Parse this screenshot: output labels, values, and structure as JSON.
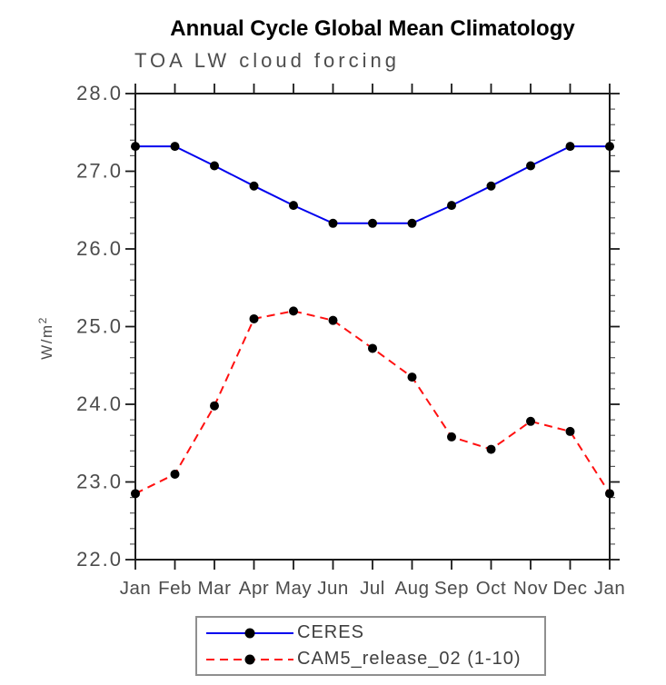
{
  "figure": {
    "title": "Annual Cycle Global Mean Climatology",
    "subtitle": "TOA LW cloud forcing"
  },
  "chart_data": {
    "type": "line",
    "title": "Annual Cycle Global Mean Climatology",
    "subtitle": "TOA LW cloud forcing",
    "xlabel": "",
    "ylabel": "W/m²",
    "ylabel_base": "W/m",
    "ylabel_exponent": "2",
    "categories": [
      "Jan",
      "Feb",
      "Mar",
      "Apr",
      "May",
      "Jun",
      "Jul",
      "Aug",
      "Sep",
      "Oct",
      "Nov",
      "Dec",
      "Jan"
    ],
    "ylim": [
      22.0,
      28.0
    ],
    "ytick_major_step": 1.0,
    "ytick_minor_step": 0.2,
    "ytick_labels": [
      "22.0",
      "23.0",
      "24.0",
      "25.0",
      "26.0",
      "27.0",
      "28.0"
    ],
    "grid": false,
    "legend_position": "bottom",
    "series": [
      {
        "name": "CERES",
        "line_color": "#0000ee",
        "line_style": "solid",
        "marker": "circle",
        "marker_color": "#000000",
        "values": [
          27.32,
          27.32,
          27.07,
          26.81,
          26.56,
          26.33,
          26.33,
          26.33,
          26.56,
          26.81,
          27.07,
          27.32,
          27.32
        ]
      },
      {
        "name": "CAM5_release_02 (1-10)",
        "line_color": "#ff1010",
        "line_style": "dashed",
        "marker": "circle",
        "marker_color": "#000000",
        "values": [
          22.85,
          23.1,
          23.98,
          25.1,
          25.2,
          25.08,
          24.72,
          24.35,
          23.58,
          23.42,
          23.78,
          23.65,
          22.85
        ]
      }
    ]
  },
  "style_colors": {
    "axis": "#1a1a1a",
    "minor_tick": "#5a5a5a",
    "tick_label": "#4c4c4c",
    "legend_border": "#8f8f8f"
  }
}
